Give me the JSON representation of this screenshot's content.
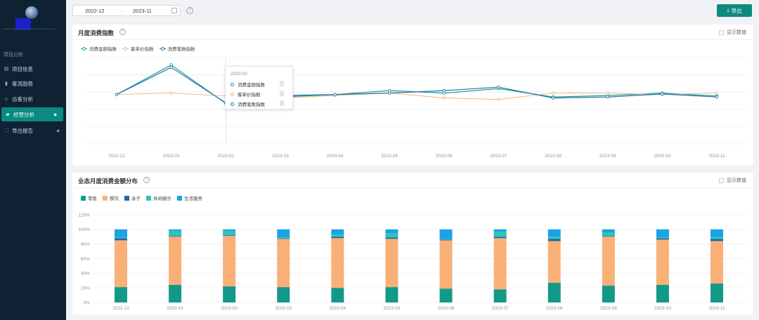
{
  "sidebar": {
    "section_title": "项目分析",
    "items": [
      {
        "label": "项目信息",
        "icon": "document-icon"
      },
      {
        "label": "客流趋势",
        "icon": "bar-chart-icon"
      },
      {
        "label": "访客分析",
        "icon": "user-icon"
      },
      {
        "label": "经营分析",
        "icon": "folder-icon",
        "active": true,
        "badge": "diamond-icon"
      },
      {
        "label": "导出报告",
        "icon": "export-icon",
        "badge": "diamond-icon"
      }
    ]
  },
  "toolbar": {
    "date_start": "2022-12",
    "date_separator": "-",
    "date_end": "2023-11",
    "help_icon": "question-circle-icon",
    "export_label": "导出",
    "export_icon": "download-icon"
  },
  "colors": {
    "primary": "#10897f",
    "sidebar_bg": "#0f2233",
    "consume_amount": "#1a9e9a",
    "unit_price": "#f2b27d",
    "order_count": "#2a74a8",
    "retail": "#12998a",
    "dining": "#f9b077",
    "kids": "#1d67a8",
    "leisure": "#2ec4b6",
    "life_service": "#1aa3e8"
  },
  "panel_index": {
    "title": "月度消费指数",
    "show_values_label": "显示数值",
    "legend": [
      "消费金额指数",
      "客单价指数",
      "消费笔数指数"
    ],
    "tooltip": {
      "title": "2023-02",
      "rows": [
        "消费金额指数",
        "客单价指数",
        "消费笔数指数"
      ]
    }
  },
  "panel_dist": {
    "title": "业态月度消费金额分布",
    "show_values_label": "显示数值",
    "legend": [
      "零售",
      "餐饮",
      "亲子",
      "休闲娱乐",
      "生活服务"
    ]
  },
  "chart_data": [
    {
      "type": "line",
      "title": "月度消费指数",
      "categories": [
        "2022-12",
        "2023-01",
        "2023-02",
        "2023-03",
        "2023-04",
        "2023-05",
        "2023-06",
        "2023-07",
        "2023-08",
        "2023-09",
        "2023-10",
        "2023-11"
      ],
      "ylim": [
        0,
        175
      ],
      "grid": true,
      "legend_position": "top-left",
      "series": [
        {
          "name": "消费金额指数",
          "values": [
            100,
            160,
            82,
            95,
            100,
            108,
            103,
            112,
            95,
            98,
            103,
            97
          ]
        },
        {
          "name": "客单价指数",
          "values": [
            100,
            103,
            97,
            93,
            98,
            103,
            93,
            90,
            103,
            103,
            100,
            103
          ]
        },
        {
          "name": "消费笔数指数",
          "values": [
            100,
            155,
            83,
            98,
            100,
            103,
            108,
            115,
            93,
            95,
            101,
            95
          ]
        }
      ]
    },
    {
      "type": "bar",
      "stacked": true,
      "title": "业态月度消费金额分布",
      "categories": [
        "2022-12",
        "2023-01",
        "2023-02",
        "2023-03",
        "2023-04",
        "2023-05",
        "2023-06",
        "2023-07",
        "2023-08",
        "2023-09",
        "2023-10",
        "2023-11"
      ],
      "y_ticks": [
        "0%",
        "20%",
        "40%",
        "60%",
        "80%",
        "100%",
        "120%"
      ],
      "ylim": [
        0,
        120
      ],
      "grid": true,
      "legend_position": "top-left",
      "series": [
        {
          "name": "零售",
          "values": [
            21,
            24,
            22,
            21,
            20,
            21,
            19,
            18,
            27,
            23,
            24,
            26
          ]
        },
        {
          "name": "餐饮",
          "values": [
            64,
            66,
            69,
            66,
            68,
            66,
            66,
            70,
            57,
            67,
            62,
            58
          ]
        },
        {
          "name": "亲子",
          "values": [
            3,
            1,
            1,
            1,
            2,
            2,
            1,
            2,
            3,
            1,
            2,
            3
          ]
        },
        {
          "name": "休闲娱乐",
          "values": [
            1,
            7,
            6,
            1,
            3,
            6,
            1,
            7,
            3,
            5,
            1,
            2
          ]
        },
        {
          "name": "生活服务",
          "values": [
            11,
            2,
            2,
            11,
            7,
            5,
            13,
            3,
            10,
            4,
            11,
            11
          ]
        }
      ]
    }
  ]
}
